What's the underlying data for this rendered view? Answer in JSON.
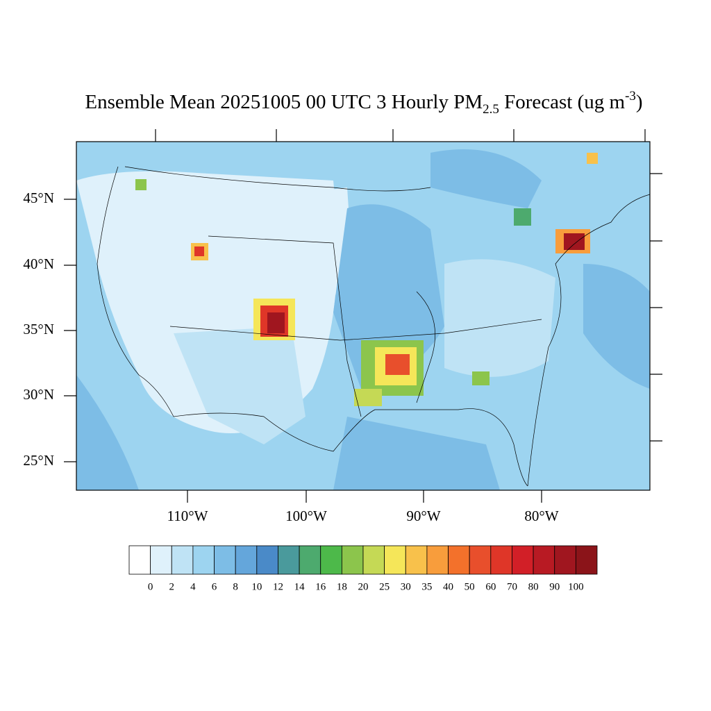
{
  "title": {
    "main": "Ensemble Mean 20251005 00 UTC 3 Hourly PM",
    "subscript": "2.5",
    "middle": " Forecast (ug m",
    "superscript": "-3",
    "end": ")"
  },
  "map": {
    "lat_labels": [
      "45°N",
      "40°N",
      "35°N",
      "30°N",
      "25°N"
    ],
    "lon_labels": [
      "110°W",
      "100°W",
      "90°W",
      "80°W"
    ]
  },
  "colorbar": {
    "colors": [
      "#ffffff",
      "#dff1fb",
      "#bfe3f5",
      "#9dd4f0",
      "#7dbde6",
      "#64a6db",
      "#4a8ac8",
      "#4a9a9c",
      "#4daa6e",
      "#4db94a",
      "#8cc54c",
      "#c5d955",
      "#f5e659",
      "#f8c14b",
      "#f89d3c",
      "#f3712b",
      "#e84f2c",
      "#df3628",
      "#d21f27",
      "#b81a23",
      "#a0161f",
      "#8b1419"
    ],
    "labels": [
      "0",
      "2",
      "4",
      "6",
      "8",
      "10",
      "12",
      "14",
      "16",
      "18",
      "20",
      "25",
      "30",
      "35",
      "40",
      "50",
      "60",
      "70",
      "80",
      "90",
      "100"
    ]
  }
}
